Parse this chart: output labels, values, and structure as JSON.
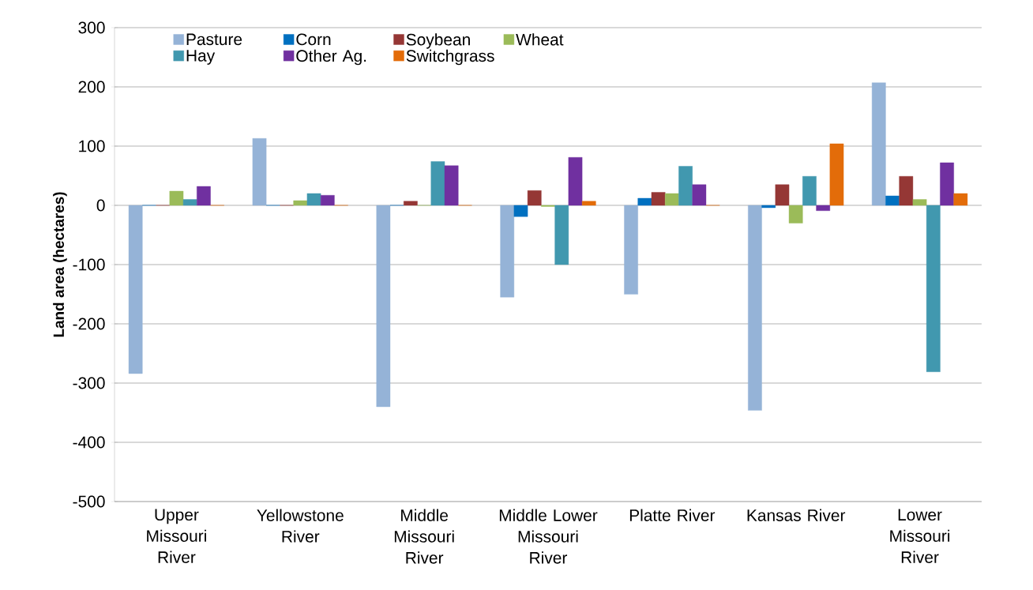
{
  "chart_data": {
    "type": "bar",
    "ylabel": "Land area (hectares)",
    "categories": [
      "Upper Missouri River",
      "Yellowstone River",
      "Middle Missouri River",
      "Middle Lower Missouri River",
      "Platte River",
      "Kansas River",
      "Lower Missouri River"
    ],
    "series": [
      {
        "name": "Pasture",
        "color": "#95b3d7",
        "values": [
          -284,
          113,
          -340,
          -155,
          -150,
          -346,
          207
        ]
      },
      {
        "name": "Corn",
        "color": "#0070c0",
        "values": [
          0,
          0,
          0,
          -19,
          12,
          -4,
          16
        ]
      },
      {
        "name": "Soybean",
        "color": "#953735",
        "values": [
          0,
          0,
          7,
          25,
          22,
          35,
          49
        ]
      },
      {
        "name": "Wheat",
        "color": "#9bbb59",
        "values": [
          24,
          8,
          0,
          -2,
          20,
          -30,
          10
        ]
      },
      {
        "name": "Hay",
        "color": "#4198af",
        "values": [
          10,
          20,
          74,
          -100,
          66,
          49,
          -281
        ]
      },
      {
        "name": "Other Ag.",
        "color": "#7030a0",
        "values": [
          32,
          17,
          67,
          81,
          35,
          -9,
          72
        ]
      },
      {
        "name": "Switchgrass",
        "color": "#e36c09",
        "values": [
          0,
          0,
          0,
          7,
          0,
          104,
          20
        ]
      }
    ],
    "ylim": [
      -500,
      300
    ],
    "yticks": [
      -500,
      -400,
      -300,
      -200,
      -100,
      0,
      100,
      200,
      300
    ],
    "grid": "y",
    "legend": "top"
  }
}
